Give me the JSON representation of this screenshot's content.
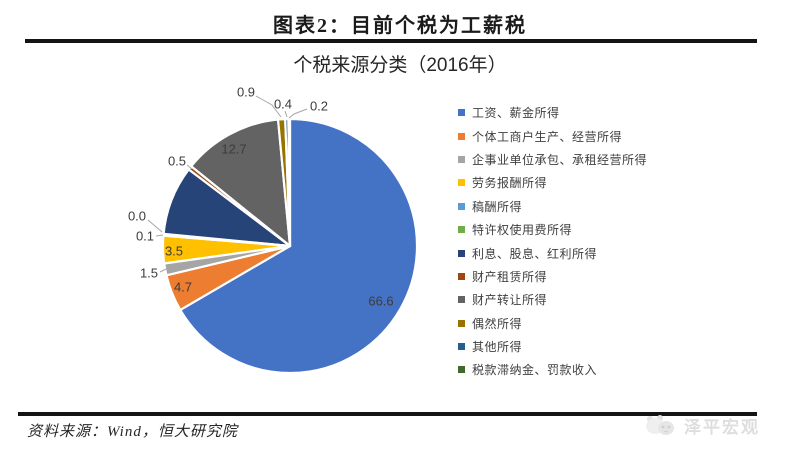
{
  "page": {
    "title": "图表2：目前个税为工薪税"
  },
  "chart_data": {
    "type": "pie",
    "title": "个税来源分类（2016年）",
    "unit": "%",
    "direction": "clockwise",
    "start_angle_deg": 0,
    "legend_position": "right",
    "slices": [
      {
        "label": "工资、薪金所得",
        "value": 66.6,
        "color": "#4472C4",
        "label_visible": true
      },
      {
        "label": "个体工商户生产、经营所得",
        "value": 4.7,
        "color": "#ED7D31",
        "label_visible": true
      },
      {
        "label": "企事业单位承包、承租经营所得",
        "value": 1.5,
        "color": "#A5A5A5",
        "label_visible": true
      },
      {
        "label": "劳务报酬所得",
        "value": 3.5,
        "color": "#FFC000",
        "label_visible": true
      },
      {
        "label": "稿酬所得",
        "value": 0.1,
        "color": "#5B9BD5",
        "label_visible": true
      },
      {
        "label": "特许权使用费所得",
        "value": 0.0,
        "color": "#70AD47",
        "label_visible": true
      },
      {
        "label": "利息、股息、红利所得",
        "value": 8.9,
        "color": "#264478",
        "label_visible": false
      },
      {
        "label": "财产租赁所得",
        "value": 0.5,
        "color": "#9E480E",
        "label_visible": true
      },
      {
        "label": "财产转让所得",
        "value": 12.7,
        "color": "#636363",
        "label_visible": true
      },
      {
        "label": "偶然所得",
        "value": 0.9,
        "color": "#997300",
        "label_visible": true
      },
      {
        "label": "其他所得",
        "value": 0.4,
        "color": "#255E91",
        "label_visible": true
      },
      {
        "label": "税款滞纳金、罚款收入",
        "value": 0.2,
        "color": "#43682B",
        "label_visible": true
      }
    ]
  },
  "footer": {
    "source": "资料来源：Wind，恒大研究院"
  },
  "watermark": {
    "text": "泽平宏观"
  }
}
